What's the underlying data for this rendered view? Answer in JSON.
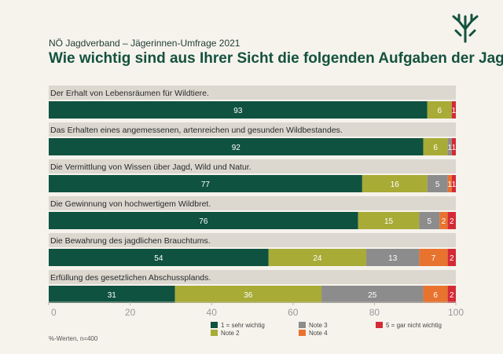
{
  "header": {
    "subtitle": "NÖ Jagdverband – Jägerinnen-Umfrage 2021",
    "title": "Wie wichtig sind aus Ihrer Sicht die folgenden Aufgaben der Jagd?",
    "logo_icon": "antler-logo-icon"
  },
  "footnote": "%-Werten, n=400",
  "colors": {
    "note1": "#0f5240",
    "note2": "#a8ab36",
    "note3": "#8c8c8c",
    "note4": "#e8732f",
    "note5": "#d42a35",
    "label_band": "#dcd8d0",
    "bar_text_light": "#ffffff",
    "bar_text_dark": "#ffffff"
  },
  "chart_data": {
    "type": "bar",
    "orientation": "horizontal",
    "stacked": true,
    "title": "Wie wichtig sind aus Ihrer Sicht die folgenden Aufgaben der Jagd?",
    "unit": "%",
    "xlim": [
      0,
      100
    ],
    "xticks": [
      0,
      20,
      40,
      60,
      80,
      100
    ],
    "categories": [
      "Der Erhalt von Lebensräumen für Wildtiere.",
      "Das Erhalten eines angemessenen, artenreichen und gesunden Wildbestandes.",
      "Die Vermittlung von Wissen über Jagd, Wild und Natur.",
      "Die Gewinnung von hochwertigem Wildbret.",
      "Die Bewahrung des jagdlichen Brauchtums.",
      "Erfüllung des gesetzlichen Abschussplands."
    ],
    "series": [
      {
        "name": "1 = sehr wichtig",
        "values": [
          93,
          92,
          77,
          76,
          54,
          31
        ]
      },
      {
        "name": "Note 2",
        "values": [
          6,
          6,
          16,
          15,
          24,
          36
        ]
      },
      {
        "name": "Note 3",
        "values": [
          0,
          1,
          5,
          5,
          13,
          25
        ]
      },
      {
        "name": "Note 4",
        "values": [
          0,
          0,
          1,
          2,
          7,
          6
        ]
      },
      {
        "name": "5 = gar nicht wichtig",
        "values": [
          1,
          1,
          1,
          2,
          2,
          2
        ]
      }
    ],
    "legend_position": "bottom"
  }
}
